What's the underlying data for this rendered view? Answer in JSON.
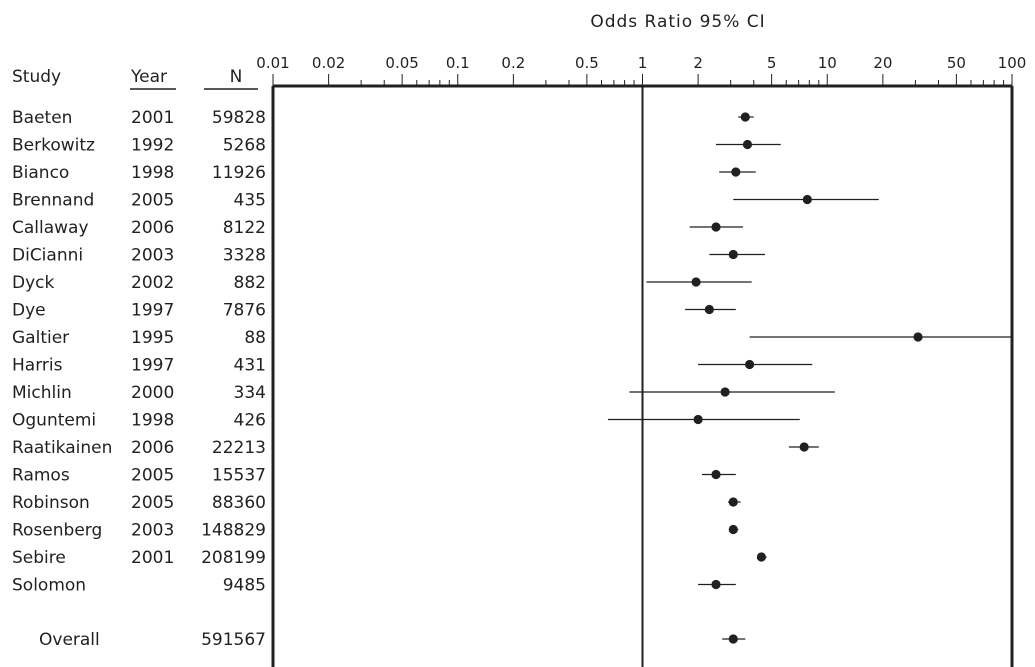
{
  "chart_data": {
    "type": "forest",
    "title": "Odds Ratio  95%  CI",
    "scale": "log",
    "xlim": [
      0.01,
      100
    ],
    "reference_line": 1,
    "x_ticks": [
      "0.01",
      "0.02",
      "0.05",
      "0.1",
      "0.2",
      "0.5",
      "1",
      "2",
      "5",
      "10",
      "20",
      "50",
      "100"
    ],
    "tick_values": [
      0.01,
      0.02,
      0.05,
      0.1,
      0.2,
      0.5,
      1,
      2,
      5,
      10,
      20,
      50,
      100
    ],
    "columns": {
      "study": "Study",
      "year": "Year",
      "n": "N"
    },
    "studies": [
      {
        "study": "Baeten",
        "year": "2001",
        "n": "59828",
        "or": 3.6,
        "lo": 3.3,
        "hi": 4.0
      },
      {
        "study": "Berkowitz",
        "year": "1992",
        "n": "5268",
        "or": 3.7,
        "lo": 2.5,
        "hi": 5.6
      },
      {
        "study": "Bianco",
        "year": "1998",
        "n": "11926",
        "or": 3.2,
        "lo": 2.6,
        "hi": 4.1
      },
      {
        "study": "Brennand",
        "year": "2005",
        "n": "435",
        "or": 7.8,
        "lo": 3.1,
        "hi": 19.0
      },
      {
        "study": "Callaway",
        "year": "2006",
        "n": "8122",
        "or": 2.5,
        "lo": 1.8,
        "hi": 3.5
      },
      {
        "study": "DiCianni",
        "year": "2003",
        "n": "3328",
        "or": 3.1,
        "lo": 2.3,
        "hi": 4.6
      },
      {
        "study": "Dyck",
        "year": "2002",
        "n": "882",
        "or": 1.95,
        "lo": 1.05,
        "hi": 3.9
      },
      {
        "study": "Dye",
        "year": "1997",
        "n": "7876",
        "or": 2.3,
        "lo": 1.7,
        "hi": 3.2
      },
      {
        "study": "Galtier",
        "year": "1995",
        "n": "88",
        "or": 31,
        "lo": 3.8,
        "hi": 100
      },
      {
        "study": "Harris",
        "year": "1997",
        "n": "431",
        "or": 3.8,
        "lo": 2.0,
        "hi": 8.3
      },
      {
        "study": "Michlin",
        "year": "2000",
        "n": "334",
        "or": 2.8,
        "lo": 0.85,
        "hi": 11.0
      },
      {
        "study": "Oguntemi",
        "year": "1998",
        "n": "426",
        "or": 2.0,
        "lo": 0.65,
        "hi": 7.1
      },
      {
        "study": "Raatikainen",
        "year": "2006",
        "n": "22213",
        "or": 7.5,
        "lo": 6.2,
        "hi": 9.0
      },
      {
        "study": "Ramos",
        "year": "2005",
        "n": "15537",
        "or": 2.5,
        "lo": 2.1,
        "hi": 3.2
      },
      {
        "study": "Robinson",
        "year": "2005",
        "n": "88360",
        "or": 3.1,
        "lo": 2.9,
        "hi": 3.4
      },
      {
        "study": "Rosenberg",
        "year": "2003",
        "n": "148829",
        "or": 3.1,
        "lo": 2.95,
        "hi": 3.3
      },
      {
        "study": "Sebire",
        "year": "2001",
        "n": "208199",
        "or": 4.4,
        "lo": 4.2,
        "hi": 4.7
      },
      {
        "study": "Solomon",
        "year": "",
        "n": "9485",
        "or": 2.5,
        "lo": 2.0,
        "hi": 3.2
      }
    ],
    "overall": {
      "study": "Overall",
      "year": "",
      "n": "591567",
      "or": 3.1,
      "lo": 2.7,
      "hi": 3.6
    },
    "grid": false,
    "legend": "none"
  }
}
